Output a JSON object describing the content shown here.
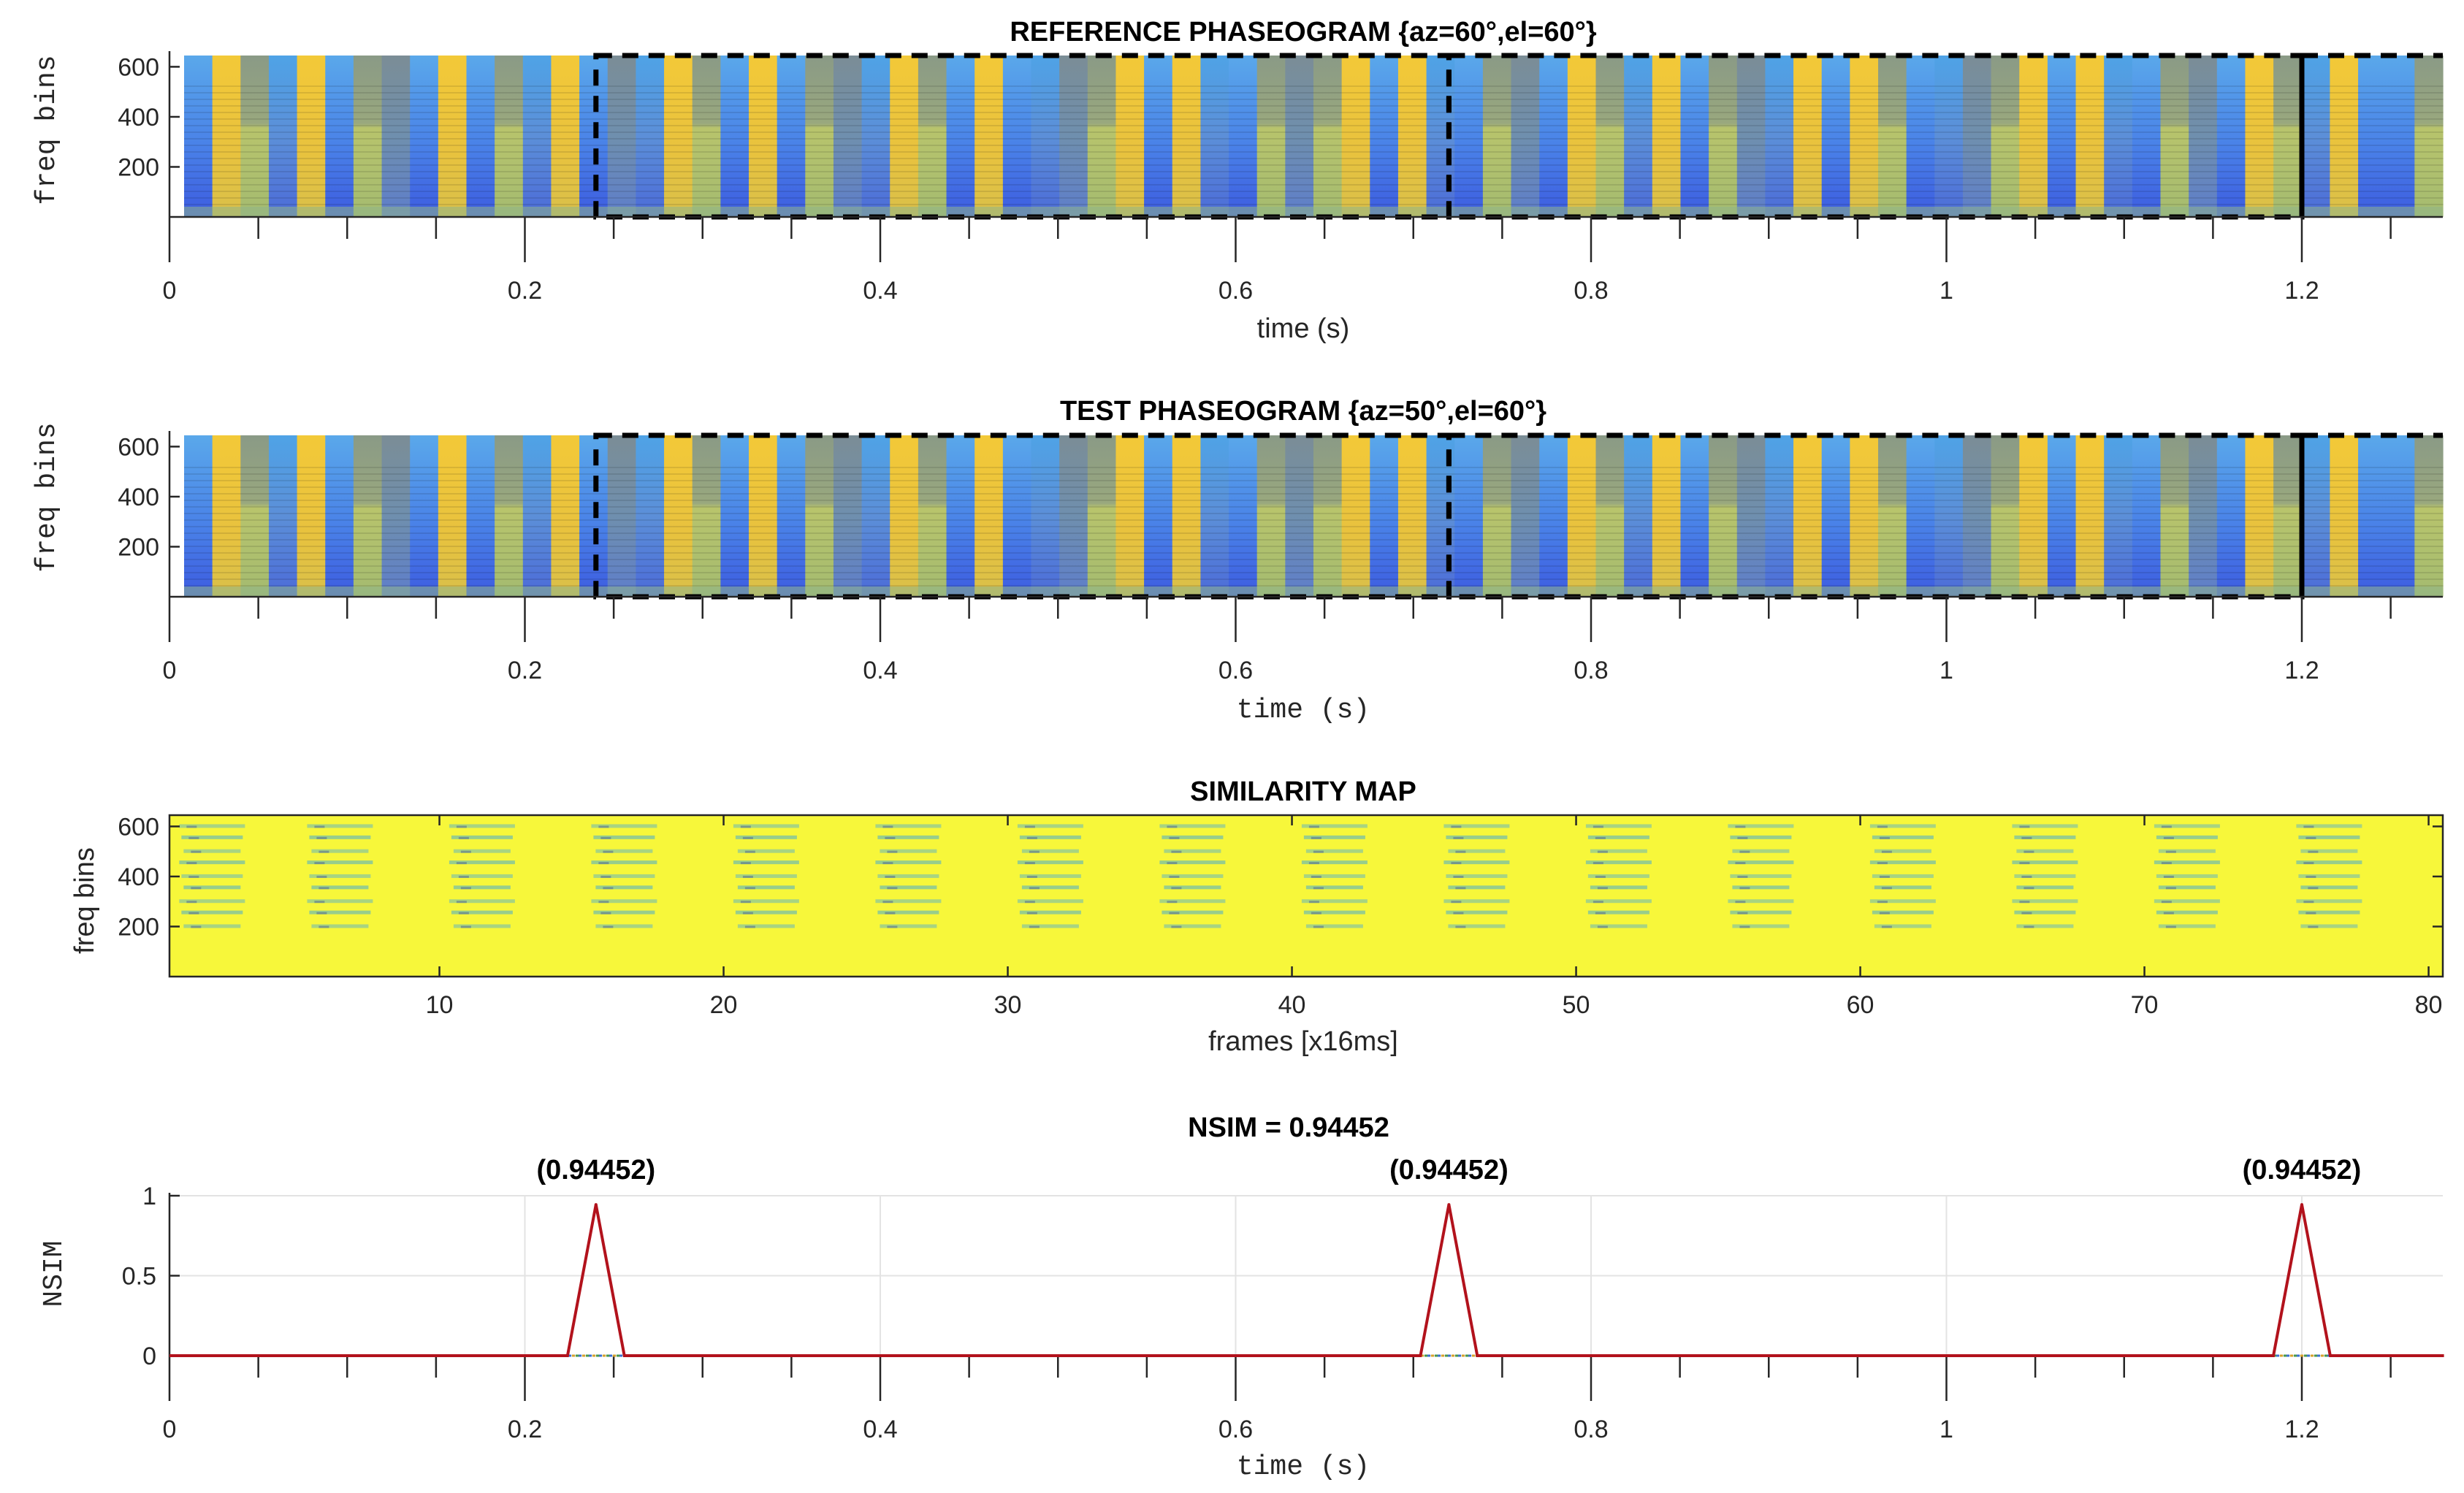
{
  "chart_data": [
    {
      "type": "heatmap",
      "title": "REFERENCE PHASEOGRAM {az=60°,el=60°}",
      "xlabel": "time (s)",
      "ylabel": "freq bins",
      "xlim": [
        0,
        1.28
      ],
      "ylim": [
        0,
        645
      ],
      "xticks": [
        "0",
        "0.2",
        "0.4",
        "0.6",
        "0.8",
        "1",
        "1.2"
      ],
      "yticks": [
        "200",
        "400",
        "600"
      ],
      "frame_colors": [
        "blue",
        "yellow",
        "olive",
        "mid",
        "yellow",
        "blue",
        "olive",
        "slate",
        "blue",
        "yellow",
        "blue",
        "olive",
        "mid",
        "yellow",
        "blue",
        "slate",
        "mid",
        "yellow",
        "olive",
        "blue",
        "yellow",
        "blue",
        "olive",
        "slate",
        "mid",
        "yellow",
        "olive",
        "blue",
        "yellow",
        "blue",
        "mid",
        "slate",
        "olive",
        "yellow",
        "blue",
        "yellow",
        "mid",
        "blue",
        "olive",
        "slate",
        "olive",
        "yellow",
        "blue",
        "yellow",
        "mid",
        "blue",
        "olive",
        "slate",
        "blue",
        "yellow",
        "olive",
        "mid",
        "yellow",
        "blue",
        "olive",
        "slate",
        "mid",
        "yellow",
        "blue",
        "yellow",
        "olive",
        "blue",
        "mid",
        "slate",
        "olive",
        "yellow",
        "blue",
        "yellow",
        "mid",
        "blue",
        "olive",
        "slate",
        "blue",
        "yellow",
        "olive",
        "mid",
        "yellow",
        "blue",
        "blue",
        "olive"
      ],
      "highlight_times": [
        0.24,
        0.72,
        1.2
      ]
    },
    {
      "type": "heatmap",
      "title": "TEST PHASEOGRAM {az=50°,el=60°}",
      "xlabel": "time (s)",
      "ylabel": "freq bins",
      "xlim": [
        0,
        1.28
      ],
      "ylim": [
        0,
        645
      ],
      "xticks": [
        "0",
        "0.2",
        "0.4",
        "0.6",
        "0.8",
        "1",
        "1.2"
      ],
      "yticks": [
        "200",
        "400",
        "600"
      ],
      "frame_colors": [
        "blue",
        "yellow",
        "olive",
        "mid",
        "yellow",
        "blue",
        "olive",
        "slate",
        "blue",
        "yellow",
        "blue",
        "olive",
        "mid",
        "yellow",
        "blue",
        "slate",
        "mid",
        "yellow",
        "olive",
        "blue",
        "yellow",
        "blue",
        "olive",
        "slate",
        "mid",
        "yellow",
        "olive",
        "blue",
        "yellow",
        "blue",
        "mid",
        "slate",
        "olive",
        "yellow",
        "blue",
        "yellow",
        "mid",
        "blue",
        "olive",
        "slate",
        "olive",
        "yellow",
        "blue",
        "yellow",
        "mid",
        "blue",
        "olive",
        "slate",
        "blue",
        "yellow",
        "olive",
        "mid",
        "yellow",
        "blue",
        "olive",
        "slate",
        "mid",
        "yellow",
        "blue",
        "yellow",
        "olive",
        "blue",
        "mid",
        "slate",
        "olive",
        "yellow",
        "blue",
        "yellow",
        "mid",
        "blue",
        "olive",
        "slate",
        "blue",
        "yellow",
        "olive",
        "mid",
        "yellow",
        "blue",
        "blue",
        "olive"
      ],
      "highlight_times": [
        0.24,
        0.72,
        1.2
      ]
    },
    {
      "type": "heatmap",
      "title": "SIMILARITY MAP",
      "xlabel": "frames [x16ms]",
      "ylabel": "freq bins",
      "xlim": [
        0.5,
        80.5
      ],
      "ylim": [
        0,
        645
      ],
      "xticks": [
        "10",
        "20",
        "30",
        "40",
        "50",
        "60",
        "70",
        "80"
      ],
      "yticks": [
        "200",
        "400",
        "600"
      ],
      "background_value": 1.0,
      "stripe_frames": [
        2,
        6.5,
        11.5,
        16.5,
        21.5,
        26.5,
        31.5,
        36.5,
        41.5,
        46.5,
        51.5,
        56.5,
        61.5,
        66.5,
        71.5,
        76.5
      ],
      "stripe_rows": [
        200,
        255,
        300,
        355,
        400,
        455,
        500,
        555,
        600
      ]
    },
    {
      "type": "line",
      "title": "NSIM = 0.94452",
      "xlabel": "time (s)",
      "ylabel": "NSIM",
      "xlim": [
        0,
        1.28
      ],
      "ylim": [
        0,
        1
      ],
      "xticks": [
        "0",
        "0.2",
        "0.4",
        "0.6",
        "0.8",
        "1",
        "1.2"
      ],
      "yticks": [
        "0",
        "0.5",
        "1"
      ],
      "series": [
        {
          "name": "NSIM",
          "color": "#b2121c",
          "x": [
            0,
            0.224,
            0.24,
            0.256,
            0.704,
            0.72,
            0.736,
            1.184,
            1.2,
            1.216,
            1.28
          ],
          "y": [
            0,
            0,
            0.94452,
            0,
            0,
            0.94452,
            0,
            0,
            0.94452,
            0,
            0
          ]
        }
      ],
      "annotations": [
        {
          "x": 0.24,
          "text": "(0.94452)"
        },
        {
          "x": 0.72,
          "text": "(0.94452)"
        },
        {
          "x": 1.2,
          "text": "(0.94452)"
        }
      ]
    }
  ],
  "colors": {
    "blue": "#4a82e8",
    "yellow": "#ebc23a",
    "olive": "#a7bb6c",
    "mid": "#5f96d4",
    "slate": "#7d8fa0",
    "sim_yellow": "#f7f73a",
    "sim_green": "#8cc896",
    "line_red": "#b2121c"
  }
}
